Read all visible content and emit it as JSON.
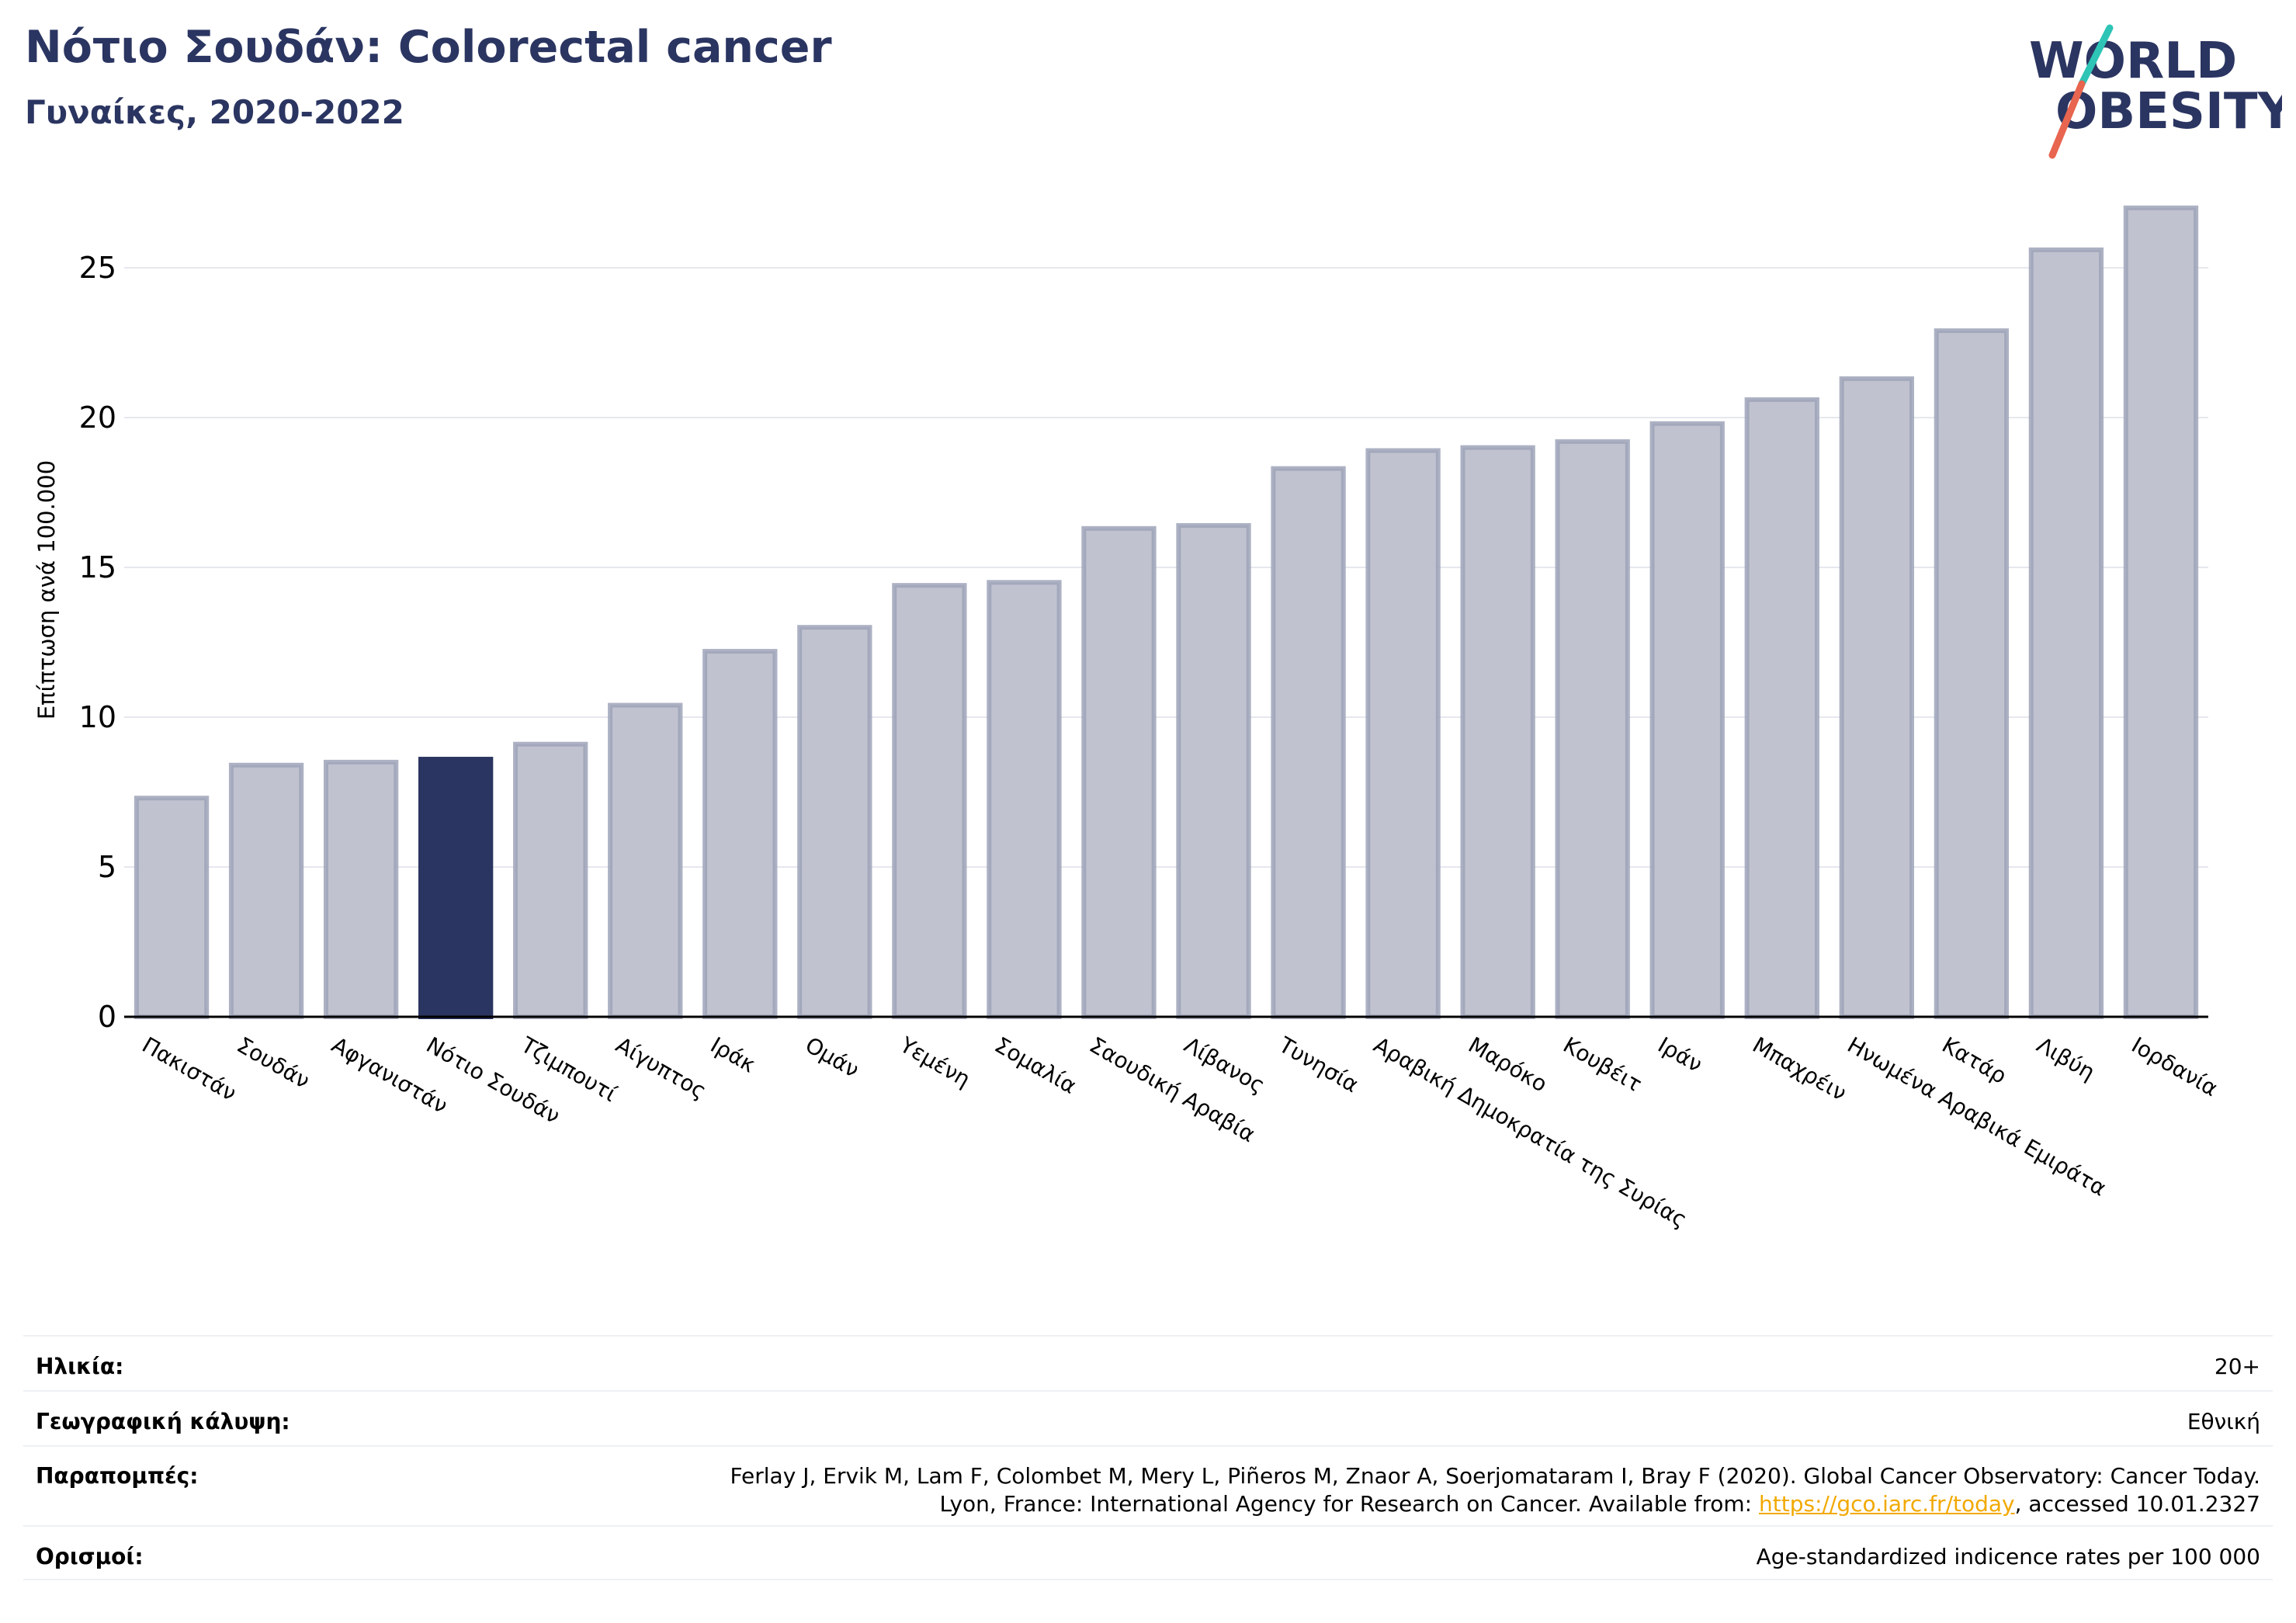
{
  "header": {
    "title": "Νότιο Σουδάν: Colorectal cancer",
    "subtitle": "Γυναίκες, 2020-2022"
  },
  "logo": {
    "line1": "WORLD",
    "line2": "OBESITY",
    "icon": "world-obesity-logo"
  },
  "colors": {
    "highlight": "#2b3561",
    "bar": "#c0c3cf",
    "bar_edge": "#9ea3b8",
    "title": "#2b3561",
    "link": "#f2a900",
    "logo_slash_teal": "#2ec4b6",
    "logo_slash_red": "#e8654f"
  },
  "chart_data": {
    "type": "bar",
    "title": "Νότιο Σουδάν: Colorectal cancer",
    "subtitle": "Γυναίκες, 2020-2022",
    "xlabel": "",
    "ylabel": "Επίπτωση ανά 100.000",
    "ylim": [
      0,
      27.5
    ],
    "yticks": [
      0,
      5,
      10,
      15,
      20,
      25
    ],
    "grid": true,
    "highlight_category": "Νότιο Σουδάν",
    "categories": [
      "Πακιστάν",
      "Σουδάν",
      "Αφγανιστάν",
      "Νότιο Σουδάν",
      "Τζιμπουτί",
      "Αίγυπτος",
      "Ιράκ",
      "Ομάν",
      "Υεμένη",
      "Σομαλία",
      "Σαουδική Αραβία",
      "Λίβανος",
      "Τυνησία",
      "Αραβική Δημοκρατία της Συρίας",
      "Μαρόκο",
      "Κουβέιτ",
      "Ιράν",
      "Μπαχρέιν",
      "Ηνωμένα Αραβικά Εμιράτα",
      "Κατάρ",
      "Λιβύη",
      "Ιορδανία"
    ],
    "values": [
      7.3,
      8.4,
      8.5,
      8.6,
      9.1,
      10.4,
      12.2,
      13.0,
      14.4,
      14.5,
      16.3,
      16.4,
      18.3,
      18.9,
      19.0,
      19.2,
      19.8,
      20.6,
      21.3,
      22.9,
      25.6,
      27.0
    ]
  },
  "meta": {
    "age_label": "Ηλικία:",
    "age_value": "20+",
    "coverage_label": "Γεωγραφική κάλυψη:",
    "coverage_value": "Εθνική",
    "refs_label": "Παραπομπές:",
    "refs_line1": "Ferlay J, Ervik M, Lam F, Colombet M, Mery L, Piñeros M, Znaor A, Soerjomataram I, Bray F (2020). Global Cancer Observatory: Cancer Today.",
    "refs_line2_pre": "Lyon, France: International Agency for Research on Cancer. Available from: ",
    "refs_link": "https://gco.iarc.fr/today",
    "refs_line2_post": ", accessed 10.01.2327",
    "defs_label": "Ορισμοί:",
    "defs_value": "Age-standardized indicence rates per 100 000"
  }
}
